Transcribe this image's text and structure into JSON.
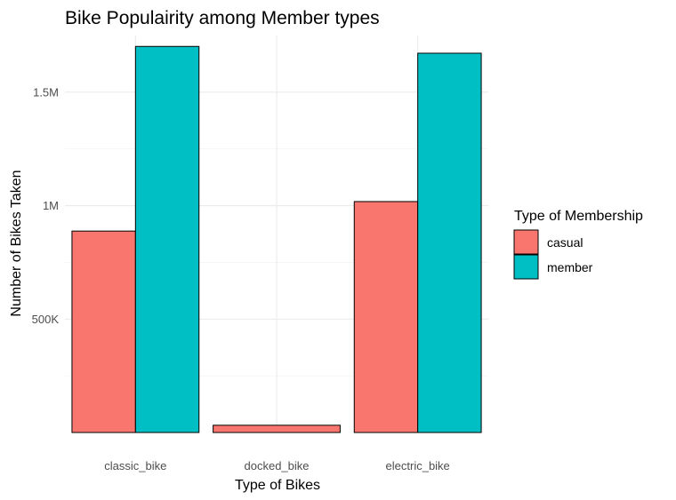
{
  "chart_data": {
    "type": "bar",
    "title": "Bike Populairity among Member types",
    "xlabel": "Type of Bikes",
    "ylabel": "Number of Bikes Taken",
    "categories": [
      "classic_bike",
      "docked_bike",
      "electric_bike"
    ],
    "series": [
      {
        "name": "casual",
        "values": [
          888000,
          32000,
          1018000
        ],
        "color": "#F8766D"
      },
      {
        "name": "member",
        "values": [
          1702000,
          null,
          1672000
        ],
        "color": "#00BFC4"
      }
    ],
    "yticks": [
      {
        "value": 500000,
        "label": "500K"
      },
      {
        "value": 1000000,
        "label": "1M"
      },
      {
        "value": 1500000,
        "label": "1.5M"
      }
    ],
    "ylim": [
      0,
      1750000
    ],
    "grid": true,
    "legend": {
      "title": "Type of Membership",
      "placement": "right"
    }
  }
}
